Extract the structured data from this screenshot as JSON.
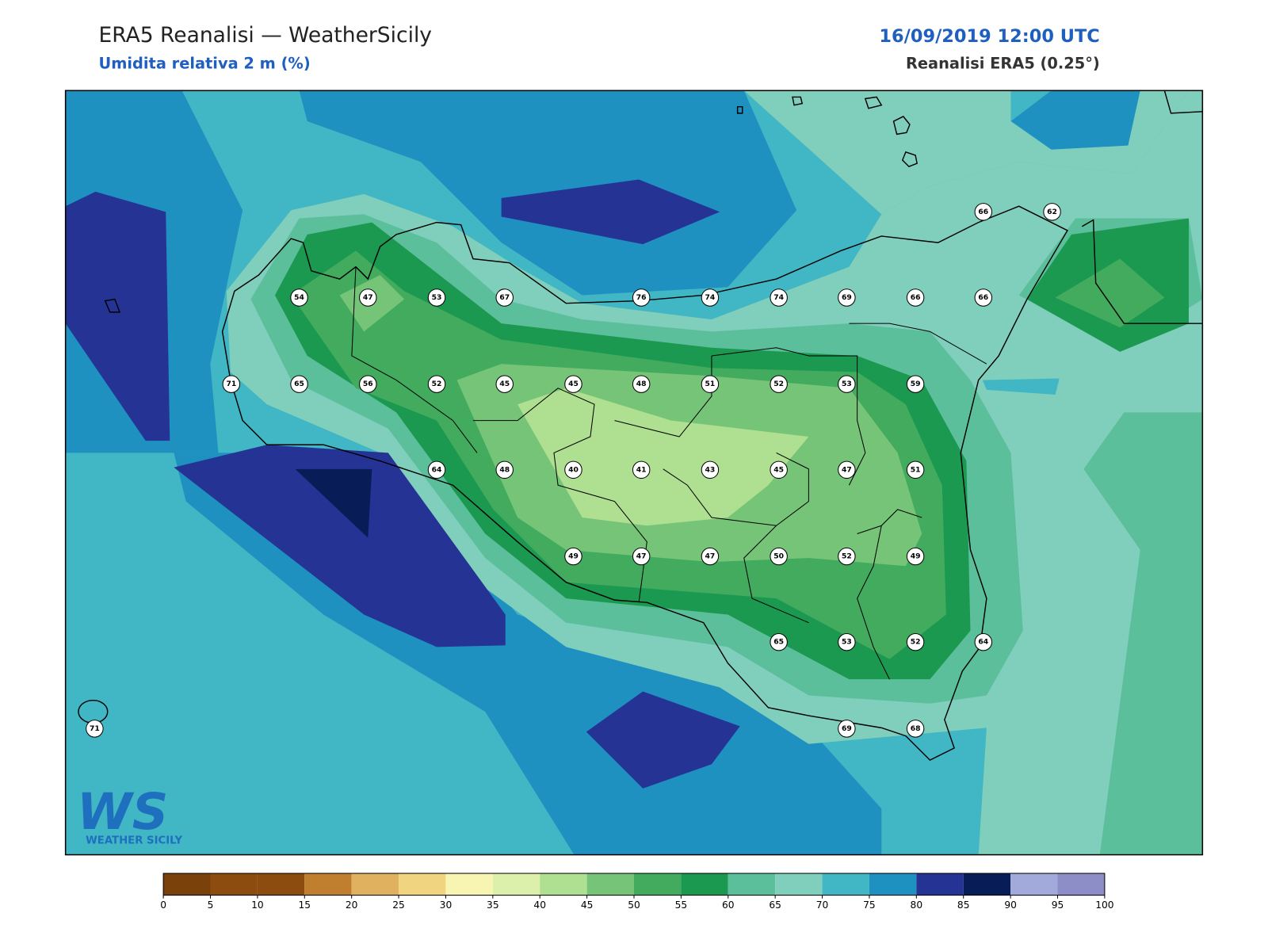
{
  "header": {
    "title": "ERA5 Reanalisi — WeatherSicily",
    "subtitle": "Umidita relativa 2 m (%)",
    "datetime": "16/09/2019 12:00 UTC",
    "source": "Reanalisi ERA5 (0.25°)"
  },
  "map": {
    "stations": [
      66,
      62,
      54,
      47,
      53,
      67,
      76,
      74,
      74,
      69,
      66,
      66,
      71,
      65,
      56,
      52,
      45,
      45,
      48,
      51,
      52,
      53,
      59,
      64,
      48,
      40,
      41,
      43,
      45,
      47,
      51,
      49,
      47,
      47,
      50,
      52,
      49,
      65,
      53,
      52,
      64,
      71,
      69,
      68
    ]
  },
  "colorbar": {
    "ticks": [
      0,
      5,
      10,
      15,
      20,
      25,
      30,
      35,
      40,
      45,
      50,
      55,
      60,
      65,
      70,
      75,
      80,
      85,
      90,
      95,
      100
    ],
    "colors": [
      "#7a420a",
      "#8c4c10",
      "#8c4c10",
      "#c07f2e",
      "#e0b15e",
      "#f0d480",
      "#f8f5b3",
      "#dcefab",
      "#afdf90",
      "#76c477",
      "#42ab5e",
      "#1c9950",
      "#5cbf9b",
      "#80cebc",
      "#41b6c4",
      "#1e91c0",
      "#253494",
      "#081d58",
      "#a2a9db",
      "#8d8ec8"
    ]
  },
  "logo": {
    "mark": "WS",
    "name": "WEATHER SICILY"
  }
}
